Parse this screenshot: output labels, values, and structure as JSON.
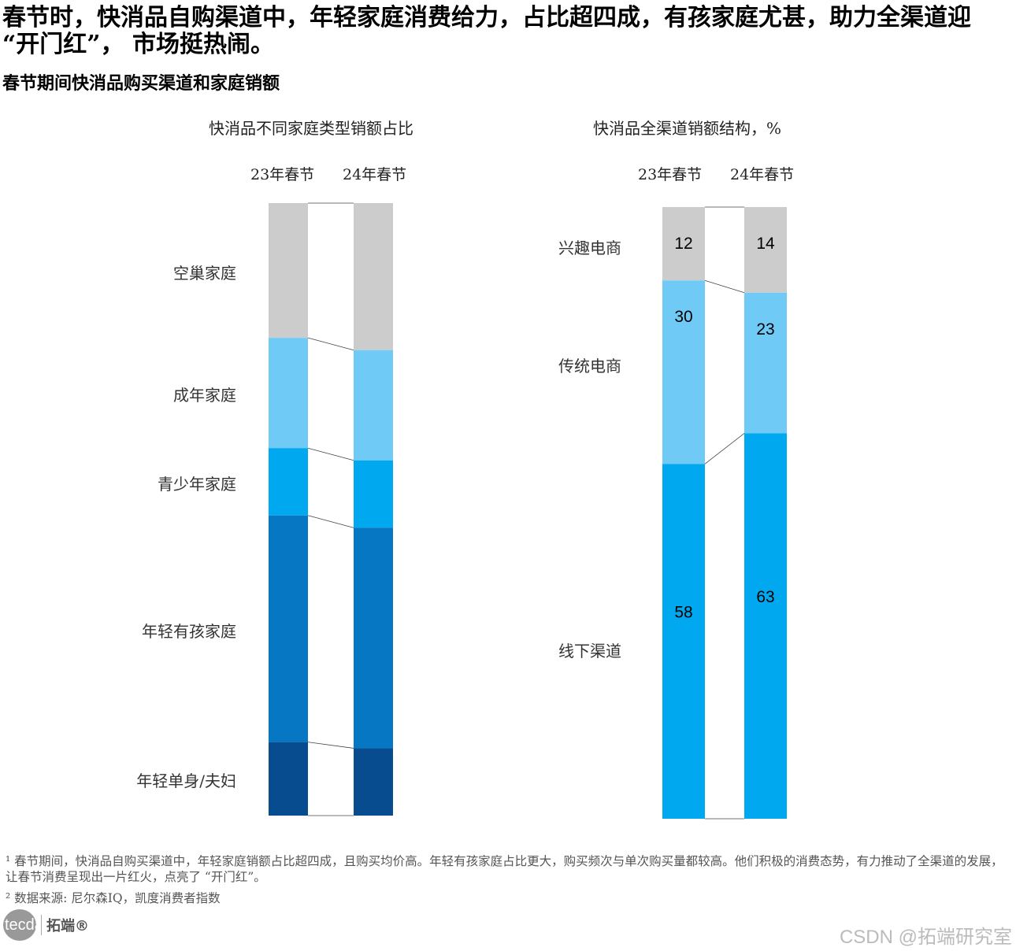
{
  "title": "春节时，快消品自购渠道中，年轻家庭消费给力，占比超四成，有孩家庭尤甚，助力全渠道迎 “开门红”， 市场挺热闹。",
  "subtitle": "春节期间快消品购买渠道和家庭销额",
  "chart_data": [
    {
      "type": "bar",
      "stacked": true,
      "title": "快消品不同家庭类型销额占比",
      "categories": [
        "23年春节",
        "24年春节"
      ],
      "series": [
        {
          "name": "空巢家庭",
          "values": [
            22,
            24
          ],
          "color": "#cccccc"
        },
        {
          "name": "成年家庭",
          "values": [
            18,
            18
          ],
          "color": "#6fcbf6"
        },
        {
          "name": "青少年家庭",
          "values": [
            11,
            11
          ],
          "color": "#00a8f0"
        },
        {
          "name": "年轻有孩家庭",
          "values": [
            37,
            36
          ],
          "color": "#0677c2"
        },
        {
          "name": "年轻单身/夫妇",
          "values": [
            12,
            11
          ],
          "color": "#074c8f"
        }
      ],
      "ylim": [
        0,
        100
      ],
      "show_labels": false
    },
    {
      "type": "bar",
      "stacked": true,
      "title": "快消品全渠道销额结构，%",
      "categories": [
        "23年春节",
        "24年春节"
      ],
      "series": [
        {
          "name": "兴趣电商",
          "values": [
            12,
            14
          ],
          "color": "#cccccc"
        },
        {
          "name": "传统电商",
          "values": [
            30,
            23
          ],
          "color": "#6fcbf6"
        },
        {
          "name": "线下渠道",
          "values": [
            58,
            63
          ],
          "color": "#00a8f0"
        }
      ],
      "ylim": [
        0,
        100
      ],
      "show_labels": true
    }
  ],
  "footnotes": [
    "¹ 春节期间，快消品自购买渠道中，年轻家庭销额占比超四成，且购买均价高。年轻有孩家庭占比更大，购买频次与单次购买量都较高。他们积极的消费态势，有力推动了全渠道的发展，让春节消费呈现出一片红火，点亮了 “开门红”。",
    "² 数据来源: 尼尔森IQ，凯度消费者指数"
  ],
  "logo": {
    "mark": "tecdat",
    "name": "拓端®"
  },
  "watermark": "CSDN @拓端研究室"
}
